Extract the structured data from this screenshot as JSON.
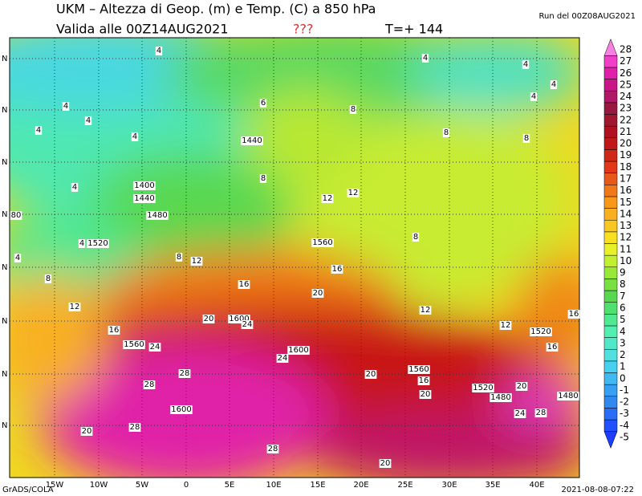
{
  "header": {
    "title": "UKM – Altezza di Geop. (m) e Temp. (C) a 850 hPa",
    "valid": "Valida alle 00Z14AUG2021",
    "flag": "???",
    "step": "T=+ 144",
    "run": "Run del 00Z08AUG2021"
  },
  "footer": {
    "left": "GrADS/COLA",
    "right": "2021-08-08-07:22"
  },
  "lon_labels": [
    "15W",
    "10W",
    "5W",
    "0",
    "5E",
    "10E",
    "15E",
    "20E",
    "25E",
    "30E",
    "35E",
    "40E"
  ],
  "lat_labels": [
    "N",
    "N",
    "N",
    "N",
    "N",
    "N",
    "N",
    "N"
  ],
  "colorbar": {
    "levels": [
      -5,
      -4,
      -3,
      -2,
      -1,
      0,
      1,
      2,
      3,
      4,
      5,
      6,
      7,
      8,
      9,
      10,
      11,
      12,
      13,
      14,
      15,
      16,
      17,
      18,
      19,
      20,
      21,
      22,
      23,
      24,
      25,
      26,
      27,
      28
    ],
    "colors": [
      "#1e3cff",
      "#2050ff",
      "#2a6ef8",
      "#3088f0",
      "#38a0f0",
      "#40b8f0",
      "#48d0f0",
      "#50e0e0",
      "#50e8c8",
      "#50f0b0",
      "#50e890",
      "#50e070",
      "#58d850",
      "#78e040",
      "#98e838",
      "#c0f030",
      "#e8f028",
      "#f8e020",
      "#f8c820",
      "#f8b020",
      "#f89818",
      "#f07818",
      "#e85818",
      "#e03818",
      "#d02818",
      "#c01818",
      "#b01020",
      "#a01830",
      "#981840",
      "#b01868",
      "#c81888",
      "#e020a8",
      "#f040c8",
      "#f880e0"
    ]
  },
  "contour_labels": [
    4,
    4,
    4,
    4,
    4,
    4,
    4,
    4,
    4,
    6,
    8,
    8,
    8,
    1440,
    8,
    4,
    12,
    12,
    1400,
    1440,
    1480,
    80,
    8,
    1560,
    4,
    1520,
    4,
    8,
    12,
    16,
    8,
    16,
    20,
    12,
    12,
    20,
    1600,
    24,
    16,
    12,
    1520,
    16,
    1560,
    24,
    1600,
    24,
    16,
    20,
    1560,
    28,
    16,
    28,
    1520,
    20,
    20,
    1480,
    1480,
    1600,
    24,
    28,
    20,
    28,
    28,
    20
  ]
}
